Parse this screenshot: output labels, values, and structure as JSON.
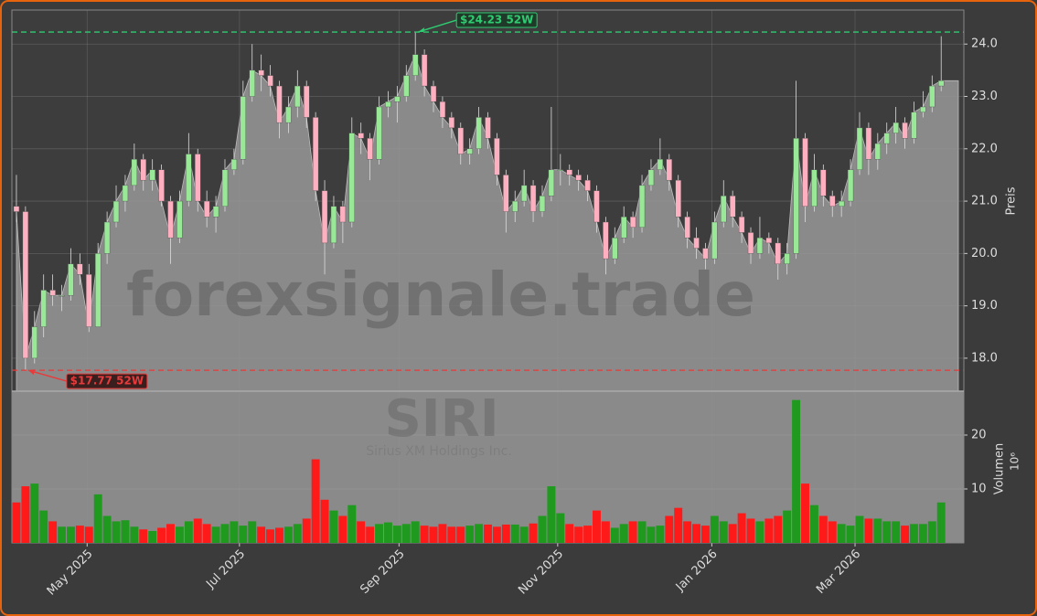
{
  "chart_data": {
    "type": "candlestick",
    "watermark": "forexsignale.trade",
    "symbol": "SIRI",
    "company": "Sirius XM Holdings Inc.",
    "ylabel": "Preis",
    "up_color": "#98e898",
    "down_color": "#ffb0c0",
    "area_color": "#8a8a8a",
    "grid": true,
    "ylim": [
      17.37,
      24.65
    ],
    "yticks": [
      {
        "value": 18,
        "label": "18.0"
      },
      {
        "value": 19,
        "label": "19.0"
      },
      {
        "value": 20,
        "label": "20.0"
      },
      {
        "value": 21,
        "label": "21.0"
      },
      {
        "value": 22,
        "label": "22.0"
      },
      {
        "value": 23,
        "label": "23.0"
      },
      {
        "value": 24,
        "label": "24.0"
      }
    ],
    "xlim": [
      -0.5,
      104.5
    ],
    "xticks": [
      {
        "value": 7.8,
        "label": "May 2025"
      },
      {
        "value": 24.6,
        "label": "Jul 2025"
      },
      {
        "value": 42.2,
        "label": "Sep 2025"
      },
      {
        "value": 59.7,
        "label": "Nov 2025"
      },
      {
        "value": 76.7,
        "label": "Jan 2026"
      },
      {
        "value": 92.5,
        "label": "Mar 2026"
      }
    ],
    "annotations": [
      {
        "value": 24.23,
        "label": "$24.23 52W",
        "color": "#2ecc71"
      },
      {
        "value": 17.77,
        "label": "$17.77 52W",
        "color": "#e83a3a"
      }
    ],
    "ohlc": [
      [
        20.9,
        21.5,
        20.6,
        20.8
      ],
      [
        20.8,
        20.9,
        17.77,
        18.0
      ],
      [
        18.0,
        18.9,
        17.9,
        18.6
      ],
      [
        18.6,
        19.6,
        18.4,
        19.3
      ],
      [
        19.3,
        19.6,
        19.0,
        19.2
      ],
      [
        19.2,
        19.4,
        18.9,
        19.2
      ],
      [
        19.2,
        20.1,
        19.1,
        19.8
      ],
      [
        19.8,
        20.0,
        19.4,
        19.6
      ],
      [
        19.6,
        19.8,
        18.5,
        18.6
      ],
      [
        18.6,
        20.2,
        18.6,
        20.0
      ],
      [
        20.0,
        20.8,
        19.8,
        20.6
      ],
      [
        20.6,
        21.3,
        20.5,
        21.0
      ],
      [
        21.0,
        21.5,
        20.8,
        21.3
      ],
      [
        21.3,
        22.1,
        21.2,
        21.8
      ],
      [
        21.8,
        21.9,
        21.2,
        21.4
      ],
      [
        21.4,
        21.8,
        21.2,
        21.6
      ],
      [
        21.6,
        21.7,
        20.9,
        21.0
      ],
      [
        21.0,
        21.1,
        19.8,
        20.3
      ],
      [
        20.3,
        21.2,
        20.2,
        21.0
      ],
      [
        21.0,
        22.3,
        20.9,
        21.9
      ],
      [
        21.9,
        22.0,
        20.8,
        21.0
      ],
      [
        21.0,
        21.2,
        20.5,
        20.7
      ],
      [
        20.7,
        21.1,
        20.4,
        20.9
      ],
      [
        20.9,
        21.8,
        20.8,
        21.6
      ],
      [
        21.6,
        22.0,
        21.5,
        21.8
      ],
      [
        21.8,
        23.3,
        21.7,
        23.0
      ],
      [
        23.0,
        24.0,
        22.9,
        23.5
      ],
      [
        23.5,
        23.8,
        23.1,
        23.4
      ],
      [
        23.4,
        23.6,
        23.0,
        23.2
      ],
      [
        23.2,
        23.3,
        22.2,
        22.5
      ],
      [
        22.5,
        23.0,
        22.3,
        22.8
      ],
      [
        22.8,
        23.5,
        22.6,
        23.2
      ],
      [
        23.2,
        23.3,
        22.4,
        22.6
      ],
      [
        22.6,
        22.7,
        21.0,
        21.2
      ],
      [
        21.2,
        21.4,
        19.6,
        20.2
      ],
      [
        20.2,
        21.1,
        20.1,
        20.9
      ],
      [
        20.9,
        21.0,
        20.2,
        20.6
      ],
      [
        20.6,
        22.6,
        20.5,
        22.3
      ],
      [
        22.3,
        22.5,
        21.9,
        22.2
      ],
      [
        22.2,
        22.3,
        21.4,
        21.8
      ],
      [
        21.8,
        23.0,
        21.7,
        22.8
      ],
      [
        22.8,
        23.1,
        22.6,
        22.9
      ],
      [
        22.9,
        23.2,
        22.5,
        23.0
      ],
      [
        23.0,
        23.6,
        22.9,
        23.4
      ],
      [
        23.4,
        24.23,
        23.3,
        23.8
      ],
      [
        23.8,
        23.9,
        23.0,
        23.2
      ],
      [
        23.2,
        23.3,
        22.7,
        22.9
      ],
      [
        22.9,
        23.0,
        22.4,
        22.6
      ],
      [
        22.6,
        22.7,
        22.2,
        22.4
      ],
      [
        22.4,
        22.5,
        21.7,
        21.9
      ],
      [
        21.9,
        22.2,
        21.7,
        22.0
      ],
      [
        22.0,
        22.8,
        21.9,
        22.6
      ],
      [
        22.6,
        22.7,
        22.0,
        22.2
      ],
      [
        22.2,
        22.3,
        21.3,
        21.5
      ],
      [
        21.5,
        21.6,
        20.4,
        20.8
      ],
      [
        20.8,
        21.2,
        20.6,
        21.0
      ],
      [
        21.0,
        21.6,
        20.9,
        21.3
      ],
      [
        21.3,
        21.4,
        20.6,
        20.8
      ],
      [
        20.8,
        21.3,
        20.7,
        21.1
      ],
      [
        21.1,
        22.8,
        21.0,
        21.6
      ],
      [
        21.6,
        21.9,
        21.3,
        21.6
      ],
      [
        21.6,
        21.7,
        21.3,
        21.5
      ],
      [
        21.5,
        21.6,
        21.2,
        21.4
      ],
      [
        21.4,
        21.5,
        21.0,
        21.2
      ],
      [
        21.2,
        21.3,
        20.4,
        20.6
      ],
      [
        20.6,
        20.7,
        19.6,
        19.9
      ],
      [
        19.9,
        20.5,
        19.8,
        20.3
      ],
      [
        20.3,
        20.9,
        20.2,
        20.7
      ],
      [
        20.7,
        20.8,
        20.3,
        20.5
      ],
      [
        20.5,
        21.5,
        20.4,
        21.3
      ],
      [
        21.3,
        21.8,
        21.2,
        21.6
      ],
      [
        21.6,
        22.2,
        21.5,
        21.8
      ],
      [
        21.8,
        21.9,
        21.2,
        21.4
      ],
      [
        21.4,
        21.5,
        20.5,
        20.7
      ],
      [
        20.7,
        20.8,
        20.1,
        20.3
      ],
      [
        20.3,
        20.5,
        19.9,
        20.1
      ],
      [
        20.1,
        20.2,
        19.7,
        19.9
      ],
      [
        19.9,
        20.8,
        19.8,
        20.6
      ],
      [
        20.6,
        21.4,
        20.5,
        21.1
      ],
      [
        21.1,
        21.2,
        20.5,
        20.7
      ],
      [
        20.7,
        20.8,
        20.2,
        20.4
      ],
      [
        20.4,
        20.5,
        19.8,
        20.0
      ],
      [
        20.0,
        20.7,
        19.9,
        20.3
      ],
      [
        20.3,
        20.4,
        20.0,
        20.2
      ],
      [
        20.2,
        20.3,
        19.5,
        19.8
      ],
      [
        19.8,
        20.2,
        19.6,
        20.0
      ],
      [
        20.0,
        23.3,
        19.9,
        22.2
      ],
      [
        22.2,
        22.3,
        20.6,
        20.9
      ],
      [
        20.9,
        21.9,
        20.8,
        21.6
      ],
      [
        21.6,
        21.7,
        20.9,
        21.1
      ],
      [
        21.1,
        21.2,
        20.7,
        20.9
      ],
      [
        20.9,
        21.2,
        20.7,
        21.0
      ],
      [
        21.0,
        21.8,
        20.9,
        21.6
      ],
      [
        21.6,
        22.7,
        21.5,
        22.4
      ],
      [
        22.4,
        22.5,
        21.5,
        21.8
      ],
      [
        21.8,
        22.3,
        21.6,
        22.1
      ],
      [
        22.1,
        22.5,
        21.9,
        22.3
      ],
      [
        22.3,
        22.8,
        22.1,
        22.5
      ],
      [
        22.5,
        22.6,
        22.0,
        22.2
      ],
      [
        22.2,
        22.9,
        22.1,
        22.7
      ],
      [
        22.7,
        23.1,
        22.6,
        22.8
      ],
      [
        22.8,
        23.4,
        22.7,
        23.2
      ],
      [
        23.2,
        24.15,
        23.1,
        23.3
      ]
    ],
    "volume": {
      "label": "Volumen",
      "unit": "10⁶",
      "up_color": "#1f9a1f",
      "down_color": "#ff1a1a",
      "ylim": [
        0,
        27.8
      ],
      "yticks": [
        10,
        20
      ],
      "values": [
        7.5,
        10.5,
        11,
        6,
        4,
        3,
        3,
        3.2,
        3,
        9,
        5,
        4,
        4.2,
        3,
        2.5,
        2.2,
        2.8,
        3.5,
        3,
        4,
        4.5,
        3.5,
        3,
        3.5,
        4,
        3.2,
        4,
        3,
        2.5,
        2.8,
        3,
        3.5,
        4.5,
        15.5,
        8,
        6,
        5,
        7,
        4,
        3,
        3.5,
        3.8,
        3.2,
        3.5,
        4,
        3.2,
        3,
        3.5,
        3,
        3,
        3.2,
        3.5,
        3.4,
        3,
        3.4,
        3.4,
        3,
        3.6,
        5,
        10.5,
        5.5,
        3.5,
        3,
        3.2,
        6,
        4,
        2.8,
        3.5,
        4,
        4,
        3,
        3.2,
        5,
        6.5,
        4,
        3.5,
        3.2,
        5,
        4,
        3.5,
        5.5,
        4.5,
        4,
        4.5,
        5,
        6,
        26.5,
        11,
        7,
        5,
        4,
        3.5,
        3.2,
        5,
        4.5,
        4.5,
        4,
        4,
        3.2,
        3.5,
        3.5,
        4,
        7.5
      ]
    }
  }
}
